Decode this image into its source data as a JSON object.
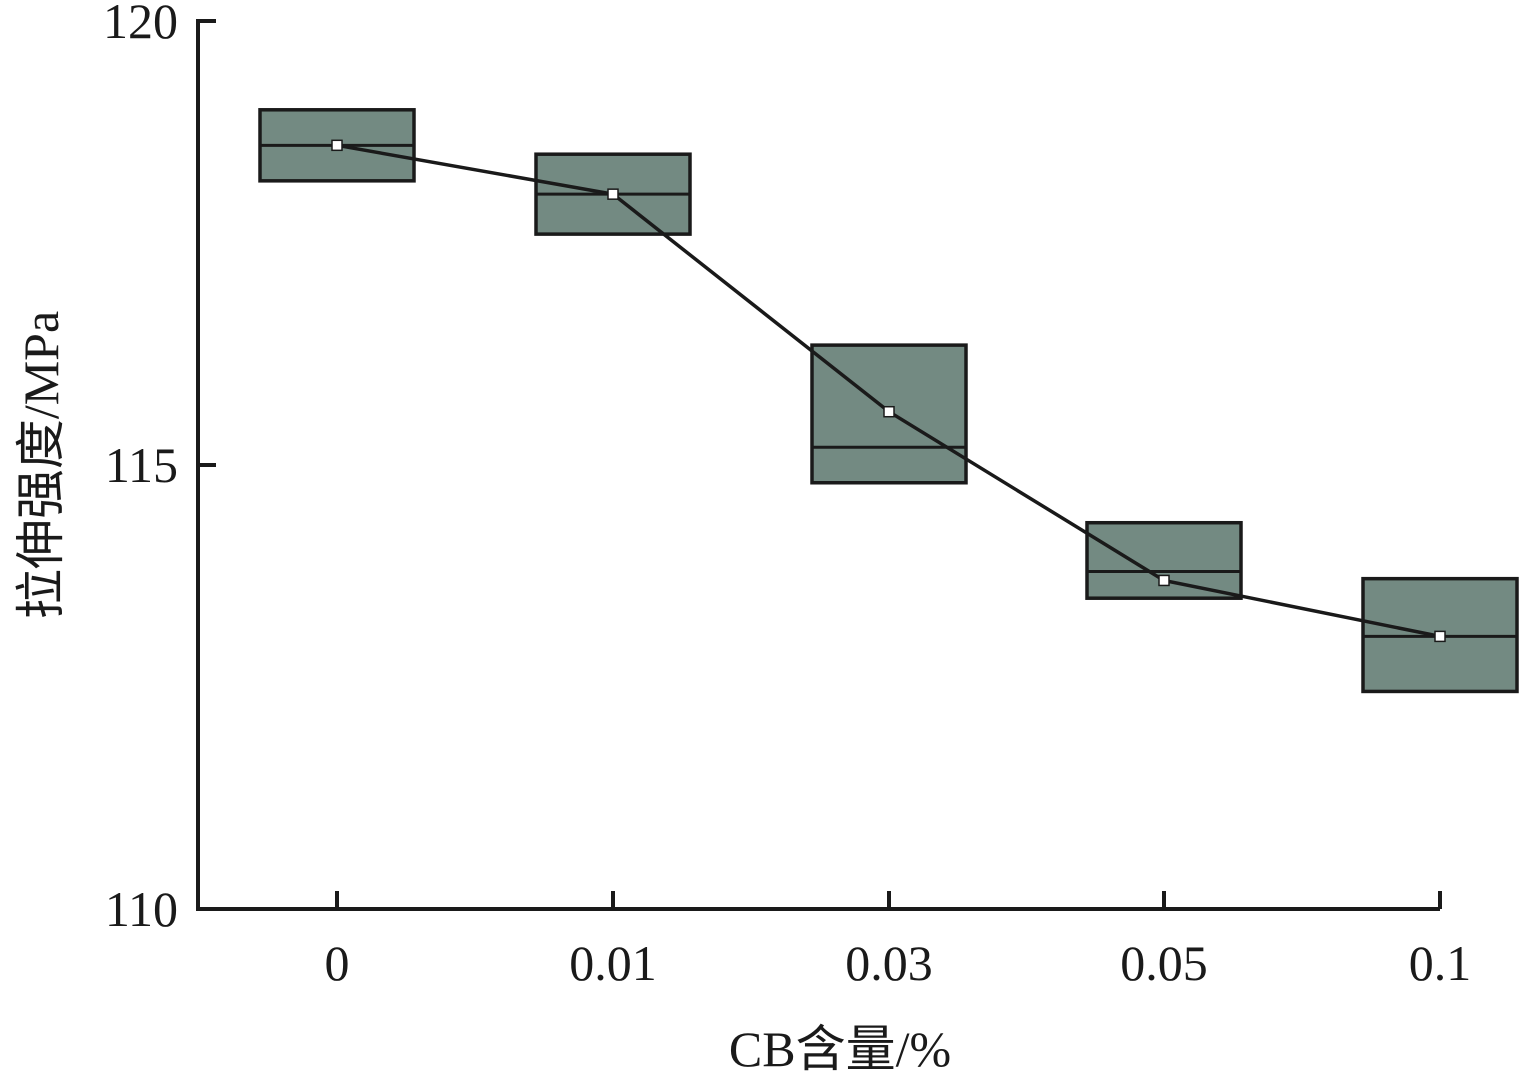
{
  "chart_data": {
    "type": "box",
    "xlabel": "CB含量/%",
    "ylabel": "拉伸强度/MPa",
    "ylim": [
      110,
      120
    ],
    "yticks": [
      110,
      115,
      120
    ],
    "categories": [
      "0",
      "0.01",
      "0.03",
      "0.05",
      "0.1"
    ],
    "boxes": [
      {
        "category": "0",
        "q1": 118.2,
        "q3": 119.0,
        "median": 118.6,
        "mean": 118.6
      },
      {
        "category": "0.01",
        "q1": 117.6,
        "q3": 118.5,
        "median": 118.05,
        "mean": 118.05
      },
      {
        "category": "0.03",
        "q1": 114.8,
        "q3": 116.35,
        "median": 115.2,
        "mean": 115.6
      },
      {
        "category": "0.05",
        "q1": 113.5,
        "q3": 114.35,
        "median": 113.8,
        "mean": 113.7
      },
      {
        "category": "0.1",
        "q1": 112.45,
        "q3": 113.72,
        "median": 113.07,
        "mean": 113.07
      }
    ],
    "box_color": "#738a82",
    "line_color": "#1a1a1a",
    "grid": false,
    "legend": false
  }
}
